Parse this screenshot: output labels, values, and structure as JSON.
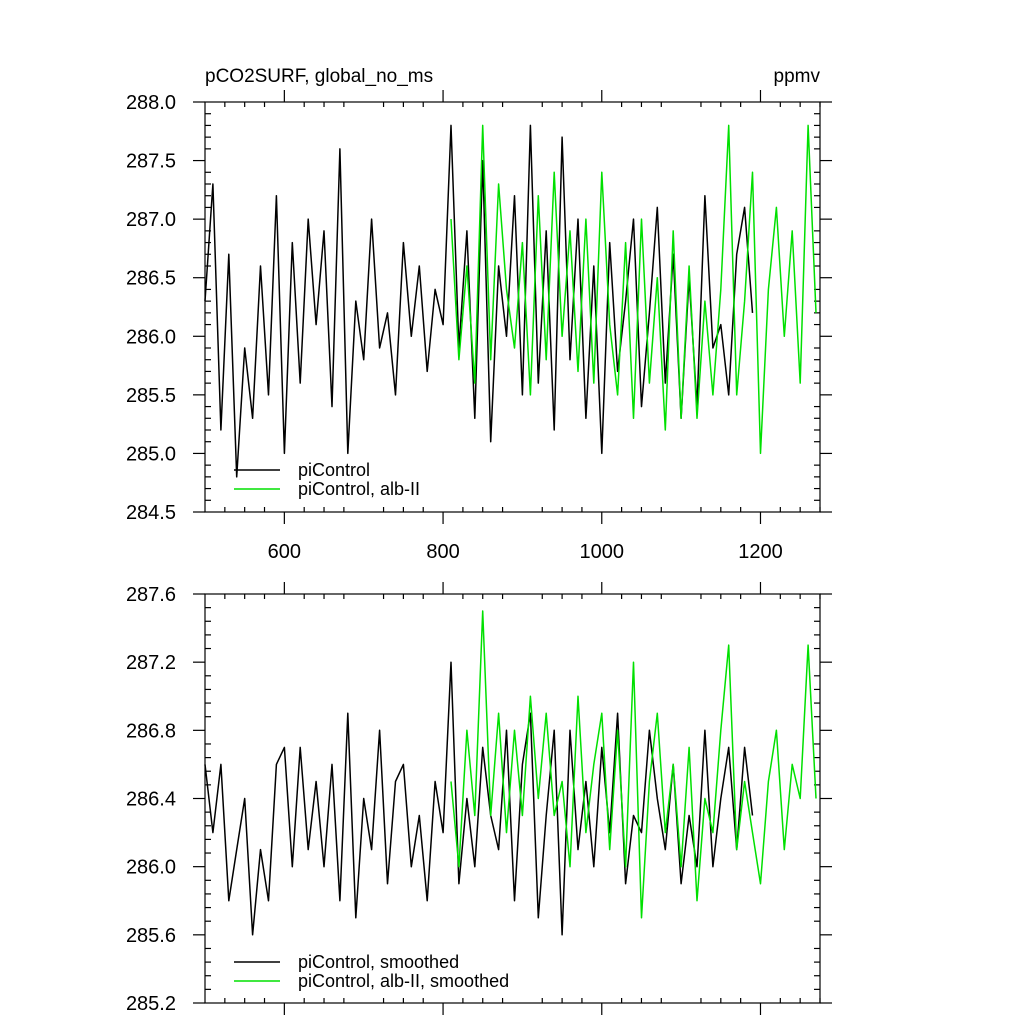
{
  "figure": {
    "title_left": "pCO2SURF, global_no_ms",
    "title_right": "ppmv"
  },
  "colors": {
    "black_series": "#000000",
    "green_series": "#00e000"
  },
  "chart_data": [
    {
      "type": "line",
      "title": "pCO2SURF, global_no_ms",
      "units": "ppmv",
      "xlim": [
        500,
        1275
      ],
      "ylim": [
        284.5,
        288.0
      ],
      "x_ticks": [
        600,
        800,
        1000,
        1200
      ],
      "x_tick_labels": [
        "600",
        "800",
        "1000",
        "1200"
      ],
      "y_ticks": [
        284.5,
        285.0,
        285.5,
        286.0,
        286.5,
        287.0,
        287.5,
        288.0
      ],
      "y_tick_labels": [
        "284.5",
        "285.0",
        "285.5",
        "286.0",
        "286.5",
        "287.0",
        "287.5",
        "288.0"
      ],
      "legend_position": "bottom-left",
      "series": [
        {
          "name": "piControl",
          "color": "#000000",
          "x": [
            500,
            510,
            520,
            530,
            540,
            550,
            560,
            570,
            580,
            590,
            600,
            610,
            620,
            630,
            640,
            650,
            660,
            670,
            680,
            690,
            700,
            710,
            720,
            730,
            740,
            750,
            760,
            770,
            780,
            790,
            800,
            810,
            820,
            830,
            840,
            850,
            860,
            870,
            880,
            890,
            900,
            910,
            920,
            930,
            940,
            950,
            960,
            970,
            980,
            990,
            1000,
            1010,
            1020,
            1030,
            1040,
            1050,
            1060,
            1070,
            1080,
            1090,
            1100,
            1110,
            1120,
            1130,
            1140,
            1150,
            1160,
            1170,
            1180,
            1190
          ],
          "y": [
            286.3,
            287.3,
            285.2,
            286.7,
            284.8,
            285.9,
            285.3,
            286.6,
            285.5,
            287.2,
            285.0,
            286.8,
            285.6,
            287.0,
            286.1,
            286.9,
            285.4,
            287.6,
            285.0,
            286.3,
            285.8,
            287.0,
            285.9,
            286.2,
            285.5,
            286.8,
            286.0,
            286.6,
            285.7,
            286.4,
            286.1,
            287.8,
            285.9,
            286.9,
            285.3,
            287.5,
            285.1,
            286.6,
            286.0,
            287.2,
            285.5,
            287.8,
            285.6,
            286.9,
            285.2,
            287.7,
            285.8,
            287.0,
            285.3,
            286.6,
            285.0,
            286.8,
            285.7,
            286.3,
            287.0,
            285.4,
            286.2,
            287.1,
            285.6,
            286.7,
            285.3,
            286.5,
            285.4,
            287.2,
            285.9,
            286.1,
            285.5,
            286.7,
            287.1,
            286.2
          ]
        },
        {
          "name": "piControl, alb-II",
          "color": "#00e000",
          "x": [
            810,
            820,
            830,
            840,
            850,
            860,
            870,
            880,
            890,
            900,
            910,
            920,
            930,
            940,
            950,
            960,
            970,
            980,
            990,
            1000,
            1010,
            1020,
            1030,
            1040,
            1050,
            1060,
            1070,
            1080,
            1090,
            1100,
            1110,
            1120,
            1130,
            1140,
            1150,
            1160,
            1170,
            1180,
            1190,
            1200,
            1210,
            1220,
            1230,
            1240,
            1250,
            1260,
            1270
          ],
          "y": [
            287.0,
            285.8,
            286.6,
            285.6,
            287.8,
            285.8,
            287.3,
            286.4,
            285.9,
            286.8,
            285.5,
            287.2,
            285.8,
            287.4,
            286.0,
            286.9,
            285.7,
            287.0,
            285.6,
            287.4,
            286.1,
            285.5,
            286.8,
            285.3,
            287.0,
            285.6,
            286.5,
            285.2,
            286.9,
            285.3,
            286.6,
            285.3,
            286.3,
            285.5,
            286.4,
            287.8,
            285.5,
            286.3,
            287.4,
            285.0,
            286.4,
            287.1,
            286.0,
            286.9,
            285.6,
            287.8,
            286.2
          ]
        }
      ]
    },
    {
      "type": "line",
      "xlim": [
        500,
        1275
      ],
      "ylim": [
        285.2,
        287.6
      ],
      "x_ticks": [
        600,
        800,
        1000,
        1200
      ],
      "y_ticks": [
        285.2,
        285.6,
        286.0,
        286.4,
        286.8,
        287.2,
        287.6
      ],
      "y_tick_labels": [
        "285.2",
        "285.6",
        "286.0",
        "286.4",
        "286.8",
        "287.2",
        "287.6"
      ],
      "legend_position": "bottom-left",
      "series": [
        {
          "name": "piControl, smoothed",
          "color": "#000000",
          "x": [
            500,
            510,
            520,
            530,
            540,
            550,
            560,
            570,
            580,
            590,
            600,
            610,
            620,
            630,
            640,
            650,
            660,
            670,
            680,
            690,
            700,
            710,
            720,
            730,
            740,
            750,
            760,
            770,
            780,
            790,
            800,
            810,
            820,
            830,
            840,
            850,
            860,
            870,
            880,
            890,
            900,
            910,
            920,
            930,
            940,
            950,
            960,
            970,
            980,
            990,
            1000,
            1010,
            1020,
            1030,
            1040,
            1050,
            1060,
            1070,
            1080,
            1090,
            1100,
            1110,
            1120,
            1130,
            1140,
            1150,
            1160,
            1170,
            1180,
            1190
          ],
          "y": [
            286.6,
            286.2,
            286.6,
            285.8,
            286.1,
            286.4,
            285.6,
            286.1,
            285.8,
            286.6,
            286.7,
            286.0,
            286.7,
            286.1,
            286.5,
            286.0,
            286.6,
            285.8,
            286.9,
            285.7,
            286.4,
            286.1,
            286.8,
            285.9,
            286.5,
            286.6,
            286.0,
            286.3,
            285.8,
            286.5,
            286.2,
            287.2,
            285.9,
            286.4,
            286.0,
            286.7,
            286.3,
            286.1,
            286.8,
            285.8,
            286.6,
            286.9,
            285.7,
            286.3,
            286.8,
            285.6,
            286.8,
            286.1,
            286.5,
            286.0,
            286.7,
            286.2,
            286.9,
            285.9,
            286.3,
            286.2,
            286.8,
            286.4,
            286.1,
            286.6,
            285.9,
            286.3,
            286.0,
            286.8,
            286.0,
            286.4,
            286.7,
            286.1,
            286.7,
            286.3
          ]
        },
        {
          "name": "piControl, alb-II, smoothed",
          "color": "#00e000",
          "x": [
            810,
            820,
            830,
            840,
            850,
            860,
            870,
            880,
            890,
            900,
            910,
            920,
            930,
            940,
            950,
            960,
            970,
            980,
            990,
            1000,
            1010,
            1020,
            1030,
            1040,
            1050,
            1060,
            1070,
            1080,
            1090,
            1100,
            1110,
            1120,
            1130,
            1140,
            1150,
            1160,
            1170,
            1180,
            1190,
            1200,
            1210,
            1220,
            1230,
            1240,
            1250,
            1260,
            1270
          ],
          "y": [
            286.5,
            286.0,
            286.8,
            286.3,
            287.5,
            286.3,
            286.9,
            286.2,
            286.8,
            286.3,
            287.0,
            286.4,
            286.9,
            286.3,
            286.5,
            286.0,
            287.0,
            286.2,
            286.6,
            286.9,
            286.1,
            286.8,
            286.0,
            287.2,
            285.7,
            286.5,
            286.9,
            286.2,
            286.6,
            286.0,
            286.7,
            285.8,
            286.4,
            286.2,
            286.8,
            287.3,
            286.1,
            286.5,
            286.2,
            285.9,
            286.5,
            286.8,
            286.1,
            286.6,
            286.4,
            287.3,
            286.4
          ]
        }
      ]
    }
  ]
}
